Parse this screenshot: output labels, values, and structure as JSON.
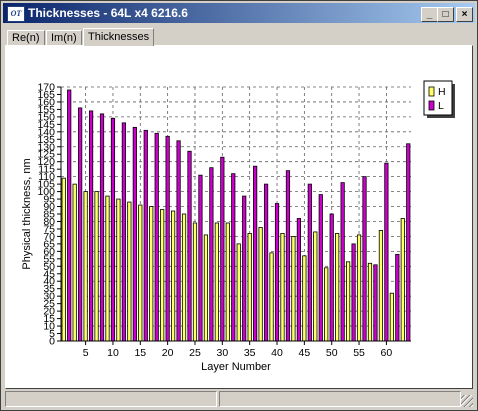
{
  "window": {
    "title": "Thicknesses - 64L  x4 6216.6",
    "icon_label": "OT",
    "icon_name": "app-logo-icon",
    "minimize_icon": "minimize-icon",
    "maximize_icon": "maximize-icon",
    "close_icon": "close-icon",
    "minimize_glyph": "_",
    "maximize_glyph": "□",
    "close_glyph": "×"
  },
  "tabs": [
    {
      "label": "Re(n)",
      "active": false
    },
    {
      "label": "Im(n)",
      "active": false
    },
    {
      "label": "Thicknesses",
      "active": true
    }
  ],
  "colors": {
    "H": "#ffff66",
    "L": "#cc00cc",
    "title_start": "#0a246a",
    "title_end": "#a6caf0"
  },
  "chart_data": {
    "type": "bar",
    "title": "",
    "xlabel": "Layer Number",
    "ylabel": "Physical thickness, nm",
    "ylim": [
      0,
      170
    ],
    "yticks": [
      0,
      5,
      10,
      15,
      20,
      25,
      30,
      35,
      40,
      45,
      50,
      55,
      60,
      65,
      70,
      75,
      80,
      85,
      90,
      95,
      100,
      105,
      110,
      115,
      120,
      125,
      130,
      135,
      140,
      145,
      150,
      155,
      160,
      165,
      170
    ],
    "xticks": [
      5,
      10,
      15,
      20,
      25,
      30,
      35,
      40,
      45,
      50,
      55,
      60
    ],
    "layers": 64,
    "grid": true,
    "legend_position": "top-right",
    "series": [
      {
        "name": "H",
        "layers": [
          1,
          3,
          5,
          7,
          9,
          11,
          13,
          15,
          17,
          19,
          21,
          23,
          25,
          27,
          29,
          31,
          33,
          35,
          37,
          39,
          41,
          43,
          45,
          47,
          49,
          51,
          53,
          55,
          57,
          59,
          61,
          63
        ],
        "values": [
          109,
          105,
          100,
          100,
          97,
          95,
          93,
          91,
          90,
          88,
          87,
          85,
          79,
          71,
          79,
          79,
          65,
          72,
          76,
          59,
          72,
          70,
          57,
          73,
          49,
          72,
          53,
          71,
          52,
          74,
          32,
          82
        ]
      },
      {
        "name": "L",
        "layers": [
          2,
          4,
          6,
          8,
          10,
          12,
          14,
          16,
          18,
          20,
          22,
          24,
          26,
          28,
          30,
          32,
          34,
          36,
          38,
          40,
          42,
          44,
          46,
          48,
          50,
          52,
          54,
          56,
          58,
          60,
          62,
          64
        ],
        "values": [
          168,
          156,
          154,
          152,
          149,
          146,
          143,
          141,
          139,
          137,
          134,
          127,
          111,
          116,
          123,
          112,
          97,
          117,
          105,
          92,
          114,
          82,
          105,
          98,
          85,
          106,
          65,
          110,
          51,
          119,
          58,
          132
        ]
      }
    ]
  }
}
